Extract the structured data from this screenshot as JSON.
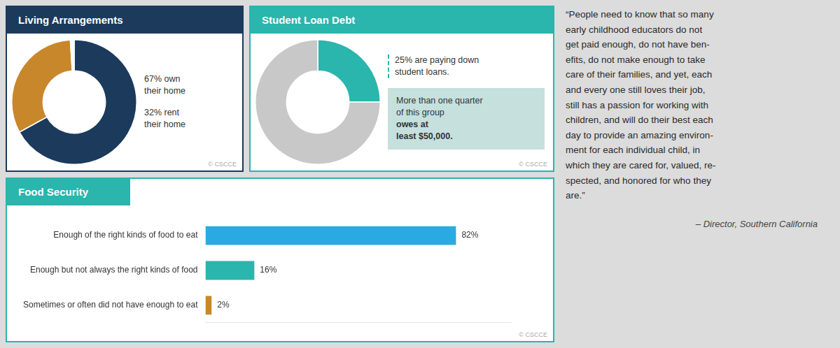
{
  "chart_data": [
    {
      "type": "doughnut",
      "title": "Living Arrangements",
      "values": [
        67,
        32,
        1
      ],
      "colors": [
        "#1b3a5c",
        "#c8872a",
        "#ffffff"
      ],
      "annotations": [
        "67% own\ntheir home",
        "32% rent\ntheir home",
        "© CSCCE"
      ],
      "legend": false
    },
    {
      "type": "doughnut",
      "title": "Student Loan Debt",
      "values": [
        25,
        75
      ],
      "colors": [
        "#2ab5ad",
        "#c8c8c8"
      ],
      "annotations": [
        "25% are paying down\nstudent loans.",
        "More than one quarter\nof this group\nowes at\nleast $50,000.",
        "© CSCCE"
      ],
      "legend": false
    },
    {
      "type": "bar",
      "orientation": "horizontal",
      "title": "Food Security",
      "categories": [
        "Enough of the right kinds of food to eat",
        "Enough but not always the right kinds of food",
        "Sometimes or often did not have enough to eat"
      ],
      "values": [
        82,
        16,
        2
      ],
      "value_labels": [
        "82%",
        "16%",
        "2%"
      ],
      "colors": [
        "#29abe2",
        "#2ab5ad",
        "#c8872a"
      ],
      "xlim": [
        0,
        100
      ],
      "data_labels": true,
      "tick_labels": "y",
      "grid": false,
      "legend": false,
      "annotations": [
        "© CSCCE"
      ]
    }
  ],
  "annotations": [
    "“People need to know that so many\nearly childhood educators do not\nget paid enough, do not have ben-\nefits, do not make enough to take\ncare of their families, and yet, each\nand every one still loves their job,\nstill has a passion for working with\nchildren, and will do their best each\nday to provide an amazing environ-\nment for each individual child, in\nwhich they are cared for, valued, re-\nspected, and honored for who they\nare.”",
    "– Director, Southern California"
  ]
}
